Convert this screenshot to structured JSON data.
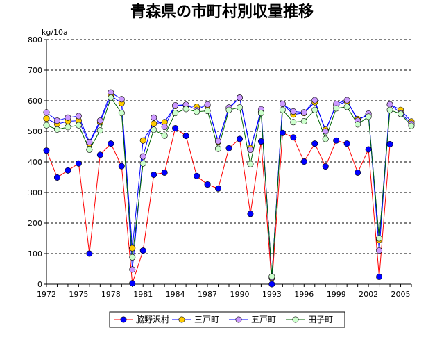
{
  "chart_data": {
    "type": "line",
    "title": "青森県の市町村別収量推移",
    "ylabel": "kg/10a",
    "xlabel": "",
    "ylim": [
      0,
      800
    ],
    "yticks": [
      0,
      100,
      200,
      300,
      400,
      500,
      600,
      700,
      800
    ],
    "xlim": [
      1972,
      2006
    ],
    "xticks": [
      1972,
      1975,
      1978,
      1981,
      1984,
      1987,
      1990,
      1993,
      1996,
      1999,
      2002,
      2005
    ],
    "grid": "horizontal-dashed",
    "legend_position": "bottom",
    "x": [
      1972,
      1973,
      1974,
      1975,
      1976,
      1977,
      1978,
      1979,
      1980,
      1981,
      1982,
      1983,
      1984,
      1985,
      1986,
      1987,
      1988,
      1989,
      1990,
      1991,
      1992,
      1993,
      1994,
      1995,
      1996,
      1997,
      1998,
      1999,
      2000,
      2001,
      2002,
      2003,
      2004,
      2005,
      2006
    ],
    "series": [
      {
        "name": "脇野沢村",
        "line_color": "#ff0000",
        "marker_color": "#0000ff",
        "values": [
          437,
          349,
          372,
          395,
          100,
          423,
          460,
          386,
          3,
          110,
          358,
          365,
          510,
          485,
          354,
          326,
          313,
          445,
          475,
          230,
          467,
          0,
          495,
          480,
          401,
          460,
          385,
          470,
          460,
          365,
          441,
          24,
          458,
          null,
          null
        ]
      },
      {
        "name": "三戸町",
        "line_color": "#0000ff",
        "marker_color": "#ffcc00",
        "values": [
          542,
          524,
          533,
          535,
          460,
          530,
          617,
          592,
          118,
          470,
          525,
          530,
          583,
          585,
          580,
          585,
          466,
          575,
          610,
          445,
          562,
          20,
          590,
          555,
          560,
          595,
          505,
          585,
          598,
          540,
          553,
          145,
          588,
          570,
          532
        ]
      },
      {
        "name": "五戸町",
        "line_color": "#0000ff",
        "marker_color": "#cc99ff",
        "values": [
          562,
          535,
          545,
          550,
          465,
          535,
          627,
          605,
          48,
          418,
          545,
          515,
          585,
          587,
          570,
          588,
          468,
          578,
          610,
          440,
          572,
          22,
          590,
          565,
          562,
          602,
          500,
          590,
          602,
          535,
          558,
          110,
          588,
          560,
          525
        ]
      },
      {
        "name": "田子町",
        "line_color": "#006600",
        "marker_color": "#ccffcc",
        "values": [
          520,
          506,
          514,
          520,
          440,
          503,
          610,
          560,
          88,
          395,
          505,
          486,
          560,
          573,
          564,
          567,
          443,
          570,
          578,
          393,
          560,
          25,
          570,
          530,
          533,
          570,
          475,
          575,
          580,
          523,
          548,
          150,
          570,
          557,
          518
        ]
      }
    ]
  }
}
